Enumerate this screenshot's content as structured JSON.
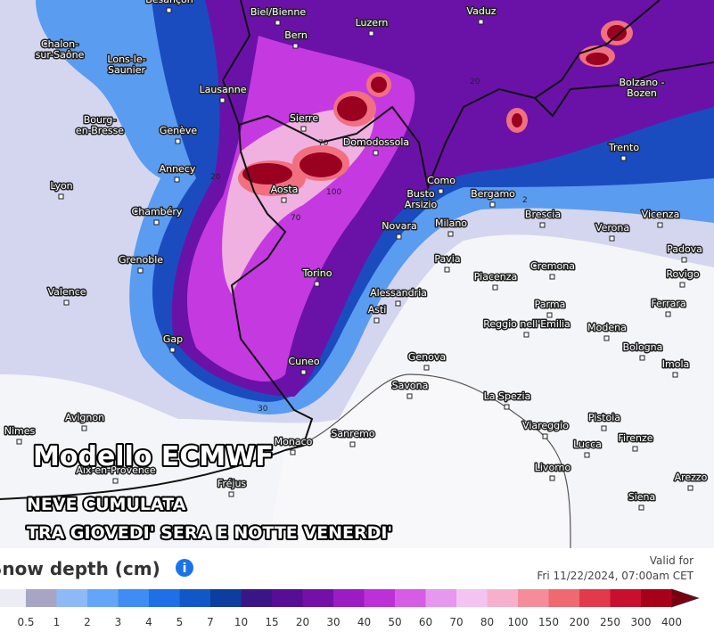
{
  "map": {
    "cities": [
      "Besançon",
      "Biel/Bienne",
      "Luzern",
      "Vaduz",
      "Bern",
      [
        "Chalon-",
        "sur-Saône"
      ],
      [
        "Lons-le-",
        "Saunier"
      ],
      [
        "Bolzano -",
        "Bozen"
      ],
      "Lausanne",
      [
        "Bourg-",
        "en-Bresse"
      ],
      "Genève",
      "Sierre",
      "Domodossola",
      "Trento",
      "Annecy",
      "Aosta",
      "Como",
      "Bergamo",
      "Lyon",
      [
        "Busto",
        "Arsizio"
      ],
      "Brescia",
      "Vicenza",
      "Chambéry",
      "Novara",
      "Milano",
      "Verona",
      "Padova",
      "Grenoble",
      "Pavia",
      "Cremona",
      "Rovigo",
      "Valence",
      "Torino",
      "Piacenza",
      "Alessandria",
      "Parma",
      "Ferrara",
      "Asti",
      "Reggio nell'Emilia",
      "Modena",
      "Gap",
      "Bologna",
      "Genova",
      "Cuneo",
      "Imola",
      "Savona",
      "La Spezia",
      "Avignon",
      "Pistoia",
      "Nimes",
      "Viareggio",
      "Sanremo",
      "Lucca",
      "Firenze",
      "Monaco",
      "Aix-en-Provence",
      "Livorno",
      "Arezzo",
      "Fréjus",
      "Siena"
    ],
    "contour_labels": [
      "70",
      "100",
      "70",
      "20",
      "20",
      "2",
      "30"
    ]
  },
  "overlay": {
    "title": "Modello ECMWF",
    "subtitle_lines": [
      "NEVE CUMULATA",
      "TRA GIOVEDI' SERA E NOTTE VENERDI'"
    ]
  },
  "legend": {
    "title": "Snow depth (cm)",
    "info_icon": "i",
    "valid_label": "Valid for",
    "valid_time": "Fri 11/22/2024, 07:00am CET",
    "thresholds": [
      "0.5",
      "1",
      "2",
      "3",
      "4",
      "5",
      "7",
      "10",
      "15",
      "20",
      "30",
      "40",
      "50",
      "60",
      "70",
      "80",
      "100",
      "150",
      "200",
      "250",
      "300",
      "400"
    ],
    "colors": [
      "#ececf4",
      "#a6a6c4",
      "#8dbaf7",
      "#63a6f7",
      "#3f8cf2",
      "#1e70e6",
      "#1057c8",
      "#0b3e9e",
      "#3a1586",
      "#560f94",
      "#7310a8",
      "#9a1cc2",
      "#bd30d8",
      "#d65ce6",
      "#e697ee",
      "#f3c4f1",
      "#f7b0cc",
      "#f48c9a",
      "#ee6a70",
      "#e23a4a",
      "#c8102e",
      "#a80018",
      "#7a0010"
    ]
  }
}
